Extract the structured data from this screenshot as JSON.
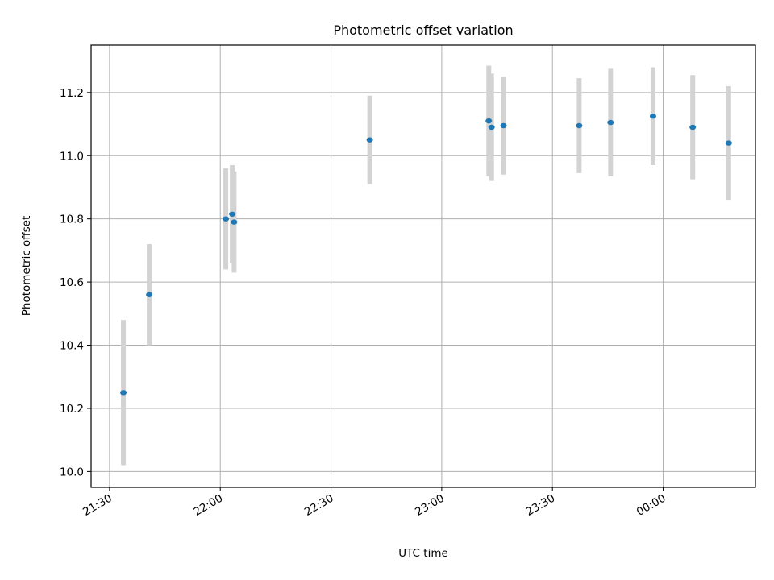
{
  "chart_data": {
    "type": "scatter",
    "title": "Photometric offset variation",
    "xlabel": "UTC time",
    "ylabel": "Photometric offset",
    "x_axis": {
      "kind": "time",
      "range": [
        "21:25",
        "24:25"
      ],
      "ticks": [
        {
          "time": "21:30",
          "label": "21:30"
        },
        {
          "time": "22:00",
          "label": "22:00"
        },
        {
          "time": "22:30",
          "label": "22:30"
        },
        {
          "time": "23:00",
          "label": "23:00"
        },
        {
          "time": "23:30",
          "label": "23:30"
        },
        {
          "time": "24:00",
          "label": "00:00"
        }
      ]
    },
    "y_axis": {
      "range": [
        9.95,
        11.35
      ],
      "ticks": [
        10.0,
        10.2,
        10.4,
        10.6,
        10.8,
        11.0,
        11.2
      ],
      "tick_labels": [
        "10.0",
        "10.2",
        "10.4",
        "10.6",
        "10.8",
        "11.0",
        "11.2"
      ]
    },
    "grid": true,
    "point_color": "#1f77b4",
    "errorbar_color": "#d3d3d3",
    "points": [
      {
        "time": "21:33:45",
        "y": 10.25,
        "err": 0.23
      },
      {
        "time": "21:40:45",
        "y": 10.56,
        "err": 0.16
      },
      {
        "time": "22:01:30",
        "y": 10.8,
        "err": 0.16
      },
      {
        "time": "22:03:15",
        "y": 10.815,
        "err": 0.155
      },
      {
        "time": "22:03:45",
        "y": 10.79,
        "err": 0.16
      },
      {
        "time": "22:40:30",
        "y": 11.05,
        "err": 0.14
      },
      {
        "time": "23:12:45",
        "y": 11.11,
        "err": 0.175
      },
      {
        "time": "23:13:30",
        "y": 11.09,
        "err": 0.17
      },
      {
        "time": "23:16:45",
        "y": 11.095,
        "err": 0.155
      },
      {
        "time": "23:37:15",
        "y": 11.095,
        "err": 0.15
      },
      {
        "time": "23:45:45",
        "y": 11.105,
        "err": 0.17
      },
      {
        "time": "23:57:15",
        "y": 11.125,
        "err": 0.155
      },
      {
        "time": "24:08:00",
        "y": 11.09,
        "err": 0.165
      },
      {
        "time": "24:17:45",
        "y": 11.04,
        "err": 0.18
      }
    ]
  }
}
